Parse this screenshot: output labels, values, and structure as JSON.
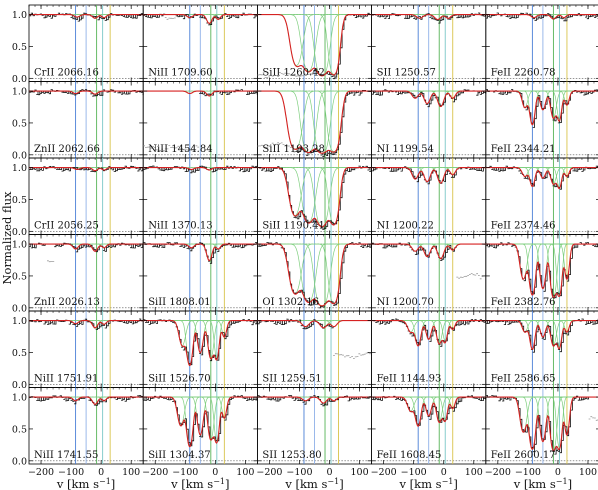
{
  "chart_data": {
    "type": "line",
    "grid": {
      "rows": 6,
      "cols": 5
    },
    "ylabel": "Normalized flux",
    "xlabel": "v [km s",
    "xlabel_sup": "−1",
    "xlabel_close": "]",
    "xlim": [
      -240,
      140
    ],
    "ylim": [
      -0.05,
      1.15
    ],
    "xticks": [
      -200,
      -100,
      0,
      100
    ],
    "xtick_labels": [
      "−200",
      "−100",
      "0",
      "100"
    ],
    "yticks": [
      0.0,
      0.5,
      1.0
    ],
    "ytick_labels": [
      "0.0",
      "0.5",
      "1.0"
    ],
    "component_velocities": [
      -85,
      -50,
      -15,
      5,
      30
    ],
    "component_colors": [
      "#4a7fd6",
      "#8fb1e8",
      "#56b356",
      "#7ac7c7",
      "#d8c34a"
    ],
    "data_color": "#111111",
    "excluded_color": "#9a9a9a",
    "model_color": "#d62222",
    "component_model_color": "#7fcf7f",
    "panels": [
      {
        "label": "CrII 2066.16",
        "abs": [
          [
            -80,
            0.04,
            12
          ],
          [
            -20,
            0.06,
            12
          ],
          [
            10,
            0.05,
            10
          ]
        ]
      },
      {
        "label": "NiII 1709.60",
        "abs": [
          [
            -85,
            0.05,
            12
          ],
          [
            -20,
            0.15,
            12
          ],
          [
            10,
            0.08,
            10
          ]
        ],
        "excl": [
          [
            -170,
            -135,
            0.03
          ]
        ]
      },
      {
        "label": "SiII 1260.42",
        "abs": [
          [
            -110,
            1.6,
            22
          ],
          [
            -70,
            2.2,
            22
          ],
          [
            -25,
            3.2,
            22
          ],
          [
            15,
            2.8,
            18
          ]
        ],
        "excl": [
          [
            -240,
            -60,
            0.95
          ]
        ]
      },
      {
        "label": "SII 1250.57",
        "abs": [
          [
            -80,
            0.06,
            14
          ],
          [
            -20,
            0.08,
            14
          ],
          [
            15,
            0.06,
            12
          ]
        ]
      },
      {
        "label": "FeII 2260.78",
        "abs": [
          [
            -80,
            0.05,
            12
          ],
          [
            -15,
            0.07,
            12
          ],
          [
            20,
            0.05,
            10
          ]
        ]
      },
      {
        "label": "ZnII 2062.66",
        "abs": [
          [
            -85,
            0.04,
            12
          ],
          [
            -20,
            0.05,
            12
          ]
        ]
      },
      {
        "label": "NiII 1454.84",
        "abs": [
          [
            -85,
            0.04,
            12
          ],
          [
            -20,
            0.08,
            12
          ]
        ],
        "excl": [
          [
            -240,
            -60,
            0.9
          ]
        ]
      },
      {
        "label": "SiII 1193.28",
        "abs": [
          [
            -115,
            2.4,
            24
          ],
          [
            -70,
            3.2,
            22
          ],
          [
            -25,
            3.6,
            22
          ],
          [
            15,
            3.0,
            20
          ]
        ],
        "excl": [
          [
            -240,
            -120,
            0.85
          ]
        ]
      },
      {
        "label": "NI 1199.54",
        "abs": [
          [
            -95,
            0.12,
            14
          ],
          [
            -55,
            0.22,
            14
          ],
          [
            -10,
            0.28,
            14
          ],
          [
            30,
            0.12,
            12
          ]
        ]
      },
      {
        "label": "FeII 2344.21",
        "abs": [
          [
            -110,
            0.3,
            12
          ],
          [
            -85,
            0.75,
            11
          ],
          [
            -50,
            0.35,
            12
          ],
          [
            -15,
            0.55,
            12
          ],
          [
            5,
            0.6,
            10
          ],
          [
            30,
            0.25,
            10
          ]
        ]
      },
      {
        "label": "CrII 2056.25",
        "abs": [
          [
            -80,
            0.03,
            12
          ],
          [
            -20,
            0.05,
            12
          ],
          [
            10,
            0.04,
            10
          ]
        ]
      },
      {
        "label": "NiII 1370.13",
        "abs": [
          [
            -80,
            0.03,
            12
          ],
          [
            -20,
            0.04,
            12
          ]
        ]
      },
      {
        "label": "SiII 1190.41",
        "abs": [
          [
            -115,
            1.4,
            22
          ],
          [
            -70,
            2.0,
            22
          ],
          [
            -25,
            2.6,
            22
          ],
          [
            15,
            2.2,
            18
          ]
        ]
      },
      {
        "label": "NI 1200.22",
        "abs": [
          [
            -95,
            0.2,
            14
          ],
          [
            -55,
            0.25,
            14
          ],
          [
            -10,
            0.28,
            14
          ],
          [
            30,
            0.12,
            12
          ]
        ]
      },
      {
        "label": "FeII 2374.46",
        "abs": [
          [
            -110,
            0.15,
            12
          ],
          [
            -85,
            0.35,
            11
          ],
          [
            -50,
            0.18,
            12
          ],
          [
            -15,
            0.3,
            12
          ],
          [
            5,
            0.38,
            10
          ],
          [
            30,
            0.15,
            10
          ]
        ]
      },
      {
        "label": "ZnII 2026.13",
        "abs": [
          [
            -85,
            0.08,
            12
          ],
          [
            -20,
            0.12,
            12
          ],
          [
            10,
            0.06,
            10
          ]
        ],
        "excl": [
          [
            -185,
            -160,
            0.25
          ]
        ]
      },
      {
        "label": "SiII 1808.01",
        "abs": [
          [
            -80,
            0.06,
            12
          ],
          [
            -20,
            0.3,
            12
          ],
          [
            10,
            0.08,
            10
          ]
        ]
      },
      {
        "label": "OI 1302.16",
        "abs": [
          [
            -115,
            1.5,
            22
          ],
          [
            -70,
            2.4,
            22
          ],
          [
            -25,
            3.4,
            22
          ],
          [
            15,
            2.6,
            18
          ]
        ]
      },
      {
        "label": "NI 1200.70",
        "abs": [
          [
            -95,
            0.12,
            14
          ],
          [
            -55,
            0.22,
            14
          ],
          [
            -10,
            0.26,
            14
          ],
          [
            30,
            0.1,
            12
          ]
        ],
        "excl": [
          [
            40,
            130,
            0.5
          ]
        ]
      },
      {
        "label": "FeII 2382.76",
        "abs": [
          [
            -115,
            0.8,
            14
          ],
          [
            -85,
            1.6,
            12
          ],
          [
            -50,
            1.2,
            12
          ],
          [
            -15,
            1.8,
            12
          ],
          [
            5,
            1.6,
            10
          ],
          [
            30,
            0.8,
            10
          ]
        ]
      },
      {
        "label": "NiII 1751.91",
        "abs": [
          [
            -85,
            0.05,
            12
          ],
          [
            -20,
            0.12,
            12
          ],
          [
            10,
            0.06,
            10
          ]
        ]
      },
      {
        "label": "SiII 1526.70",
        "abs": [
          [
            -110,
            0.5,
            14
          ],
          [
            -85,
            1.2,
            12
          ],
          [
            -50,
            0.7,
            12
          ],
          [
            -15,
            0.9,
            12
          ],
          [
            5,
            0.9,
            10
          ],
          [
            30,
            0.3,
            10
          ]
        ]
      },
      {
        "label": "SII 1259.51",
        "abs": [
          [
            -80,
            0.1,
            16
          ],
          [
            -20,
            0.12,
            16
          ],
          [
            15,
            0.1,
            14
          ]
        ],
        "excl": [
          [
            10,
            140,
            0.55
          ]
        ]
      },
      {
        "label": "FeII 1144.93",
        "abs": [
          [
            -110,
            0.2,
            14
          ],
          [
            -85,
            0.5,
            12
          ],
          [
            -50,
            0.35,
            12
          ],
          [
            -15,
            0.45,
            12
          ],
          [
            5,
            0.4,
            10
          ],
          [
            30,
            0.15,
            10
          ]
        ]
      },
      {
        "label": "FeII 2586.65",
        "abs": [
          [
            -110,
            0.2,
            12
          ],
          [
            -85,
            0.6,
            11
          ],
          [
            -50,
            0.3,
            12
          ],
          [
            -15,
            0.5,
            12
          ],
          [
            5,
            0.55,
            10
          ],
          [
            30,
            0.2,
            10
          ]
        ]
      },
      {
        "label": "NiII 1741.55",
        "abs": [
          [
            -85,
            0.06,
            12
          ],
          [
            -20,
            0.12,
            12
          ],
          [
            10,
            0.06,
            10
          ]
        ]
      },
      {
        "label": "SiII 1304.37",
        "abs": [
          [
            -115,
            0.6,
            14
          ],
          [
            -85,
            1.5,
            12
          ],
          [
            -50,
            0.9,
            12
          ],
          [
            -15,
            1.1,
            12
          ],
          [
            5,
            1.2,
            10
          ],
          [
            30,
            0.4,
            10
          ]
        ]
      },
      {
        "label": "SII 1253.80",
        "abs": [
          [
            -80,
            0.06,
            14
          ],
          [
            -20,
            0.1,
            14
          ],
          [
            15,
            0.06,
            12
          ]
        ]
      },
      {
        "label": "FeII 1608.45",
        "abs": [
          [
            -110,
            0.25,
            14
          ],
          [
            -85,
            0.6,
            12
          ],
          [
            -50,
            0.35,
            12
          ],
          [
            -15,
            0.5,
            12
          ],
          [
            5,
            0.45,
            10
          ],
          [
            30,
            0.2,
            10
          ]
        ]
      },
      {
        "label": "FeII 2600.17",
        "abs": [
          [
            -115,
            0.8,
            14
          ],
          [
            -85,
            1.7,
            12
          ],
          [
            -50,
            1.2,
            12
          ],
          [
            -15,
            1.8,
            12
          ],
          [
            5,
            1.6,
            10
          ],
          [
            30,
            0.9,
            10
          ]
        ],
        "excl": [
          [
            100,
            140,
            0.35
          ]
        ]
      }
    ]
  }
}
